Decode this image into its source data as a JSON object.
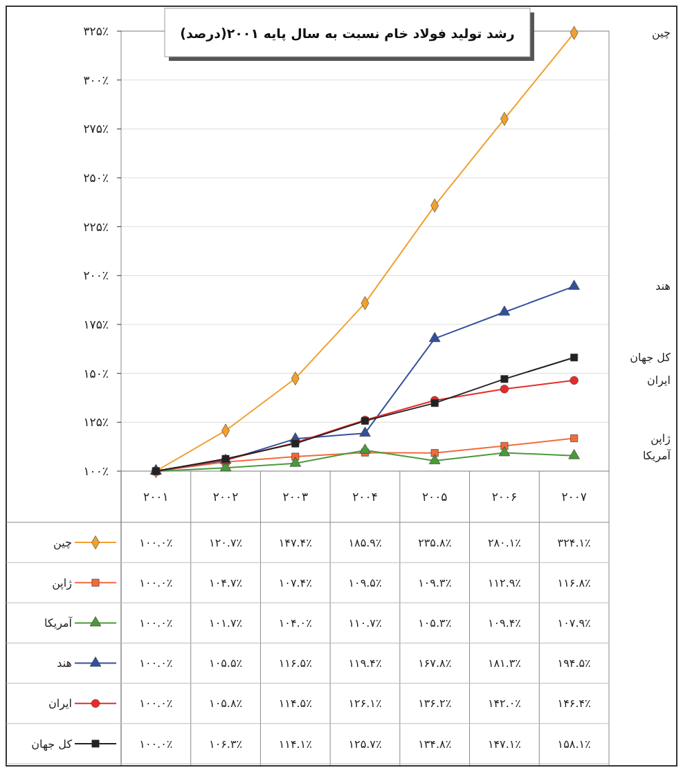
{
  "chart_data": {
    "type": "line",
    "title": "رشد تولید فولاد خام نسبت به سال پایه ۲۰۰۱(درصد)",
    "categories": [
      "۲۰۰۱",
      "۲۰۰۲",
      "۲۰۰۳",
      "۲۰۰۴",
      "۲۰۰۵",
      "۲۰۰۶",
      "۲۰۰۷"
    ],
    "ylim": [
      100,
      325
    ],
    "yticks": [
      {
        "value": 100,
        "label": "۱۰۰٪"
      },
      {
        "value": 125,
        "label": "۱۲۵٪"
      },
      {
        "value": 150,
        "label": "۱۵۰٪"
      },
      {
        "value": 175,
        "label": "۱۷۵٪"
      },
      {
        "value": 200,
        "label": "۲۰۰٪"
      },
      {
        "value": 225,
        "label": "۲۲۵٪"
      },
      {
        "value": 250,
        "label": "۲۵۰٪"
      },
      {
        "value": 275,
        "label": "۲۷۵٪"
      },
      {
        "value": 300,
        "label": "۳۰۰٪"
      },
      {
        "value": 325,
        "label": "۳۲۵٪"
      }
    ],
    "grid": "y",
    "legend": "bottom",
    "series": [
      {
        "name": "چین",
        "color": "#f0a030",
        "marker": "diamond",
        "values": [
          100.0,
          120.7,
          147.4,
          185.9,
          235.8,
          280.1,
          324.1
        ],
        "value_labels": [
          "۱۰۰.۰٪",
          "۱۲۰.۷٪",
          "۱۴۷.۴٪",
          "۱۸۵.۹٪",
          "۲۳۵.۸٪",
          "۲۸۰.۱٪",
          "۳۲۴.۱٪"
        ]
      },
      {
        "name": "ژاپن",
        "color": "#f26a3a",
        "marker": "square",
        "values": [
          100.0,
          104.7,
          107.4,
          109.5,
          109.3,
          112.9,
          116.8
        ],
        "value_labels": [
          "۱۰۰.۰٪",
          "۱۰۴.۷٪",
          "۱۰۷.۴٪",
          "۱۰۹.۵٪",
          "۱۰۹.۳٪",
          "۱۱۲.۹٪",
          "۱۱۶.۸٪"
        ]
      },
      {
        "name": "آمریکا",
        "color": "#4a9a3a",
        "marker": "triangle",
        "values": [
          100.0,
          101.7,
          104.0,
          110.7,
          105.3,
          109.4,
          107.9
        ],
        "value_labels": [
          "۱۰۰.۰٪",
          "۱۰۱.۷٪",
          "۱۰۴.۰٪",
          "۱۱۰.۷٪",
          "۱۰۵.۳٪",
          "۱۰۹.۴٪",
          "۱۰۷.۹٪"
        ]
      },
      {
        "name": "هند",
        "color": "#34509a",
        "marker": "triangle",
        "values": [
          100.0,
          105.5,
          116.5,
          119.4,
          167.8,
          181.3,
          194.5
        ],
        "value_labels": [
          "۱۰۰.۰٪",
          "۱۰۵.۵٪",
          "۱۱۶.۵٪",
          "۱۱۹.۴٪",
          "۱۶۷.۸٪",
          "۱۸۱.۳٪",
          "۱۹۴.۵٪"
        ]
      },
      {
        "name": "ایران",
        "color": "#e82a2a",
        "marker": "circle",
        "values": [
          100.0,
          105.8,
          114.5,
          126.1,
          136.2,
          142.0,
          146.4
        ],
        "value_labels": [
          "۱۰۰.۰٪",
          "۱۰۵.۸٪",
          "۱۱۴.۵٪",
          "۱۲۶.۱٪",
          "۱۳۶.۲٪",
          "۱۴۲.۰٪",
          "۱۴۶.۴٪"
        ]
      },
      {
        "name": "کل جهان",
        "color": "#222222",
        "marker": "square",
        "values": [
          100.0,
          106.3,
          114.1,
          125.7,
          134.8,
          147.1,
          158.1
        ],
        "value_labels": [
          "۱۰۰.۰٪",
          "۱۰۶.۳٪",
          "۱۱۴.۱٪",
          "۱۲۵.۷٪",
          "۱۳۴.۸٪",
          "۱۴۷.۱٪",
          "۱۵۸.۱٪"
        ]
      }
    ]
  }
}
